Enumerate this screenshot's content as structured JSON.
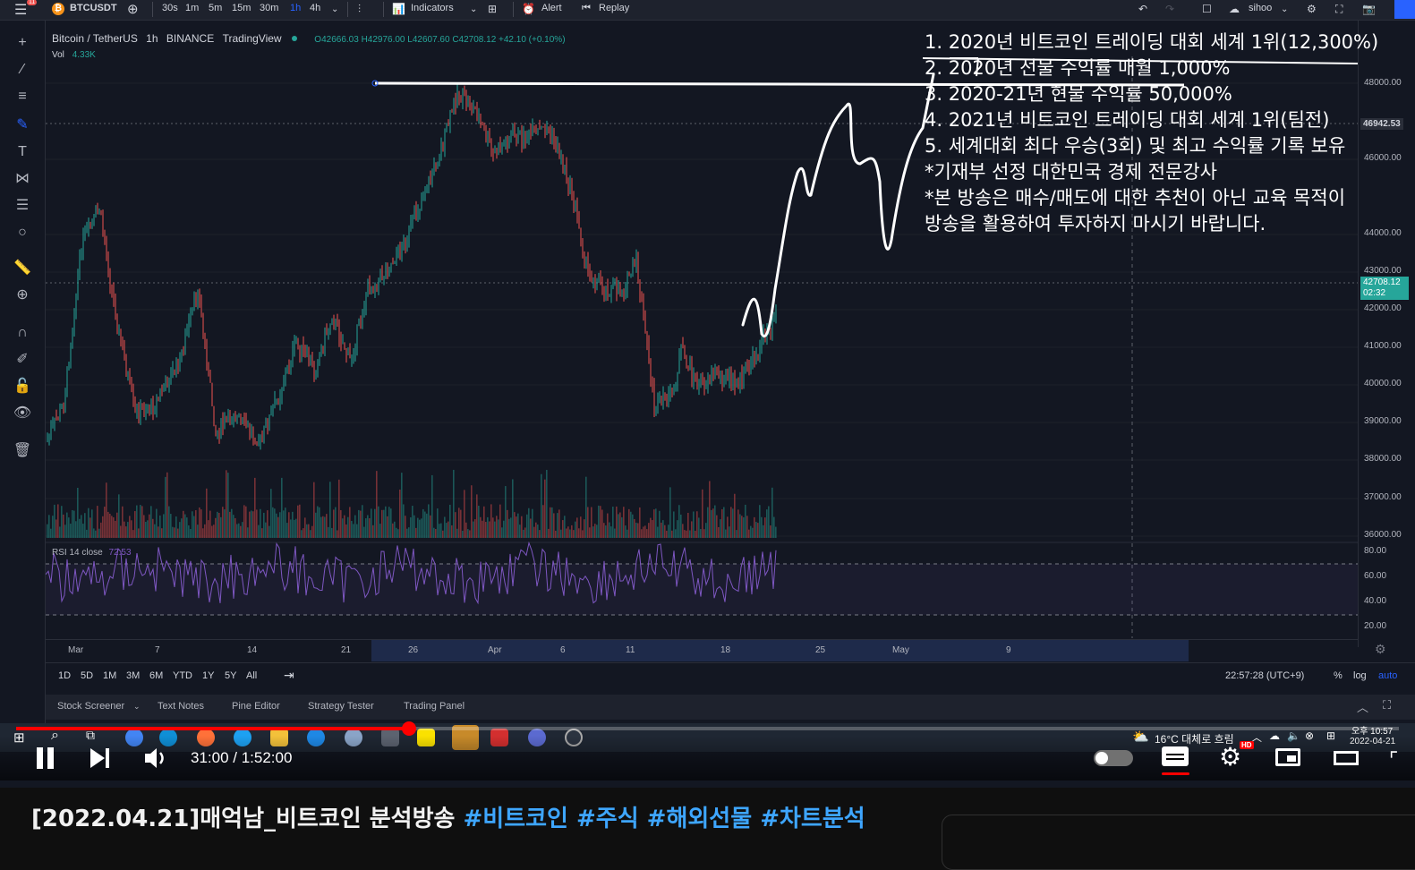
{
  "toolbar": {
    "symbol": "BTCUSDT",
    "timeframes": [
      "30s",
      "1m",
      "5m",
      "15m",
      "30m",
      "1h",
      "4h"
    ],
    "active_timeframe": "1h",
    "indicators_label": "Indicators",
    "alert_label": "Alert",
    "replay_label": "Replay",
    "user": "sihoo",
    "notification_count": "11"
  },
  "legend": {
    "title": "Bitcoin / TetherUS",
    "interval": "1h",
    "exchange": "BINANCE",
    "source": "TradingView",
    "ohlc": "O42666.03  H42976.00  L42607.60  C42708.12  +42.10 (+0.10%)",
    "vol_label": "Vol",
    "vol_value": "4.33K",
    "rsi_label": "RSI 14 close",
    "rsi_value": "72.53"
  },
  "price_scale": {
    "labels": [
      "48000.00",
      "46000.00",
      "44000.00",
      "43000.00",
      "42000.00",
      "41000.00",
      "40000.00",
      "39000.00",
      "38000.00",
      "37000.00",
      "36000.00"
    ],
    "marker": "46942.53",
    "current_price": "42708.12",
    "countdown": "02:32",
    "rsi_labels": [
      "80.00",
      "60.00",
      "40.00",
      "20.00"
    ]
  },
  "time_axis": {
    "labels": [
      "Mar",
      "7",
      "14",
      "21",
      "26",
      "Apr",
      "6",
      "11",
      "18",
      "25",
      "May",
      "9"
    ]
  },
  "range_bar": {
    "ranges": [
      "1D",
      "5D",
      "1M",
      "3M",
      "6M",
      "YTD",
      "1Y",
      "5Y",
      "All"
    ],
    "clock": "22:57:28 (UTC+9)",
    "percent": "%",
    "log": "log",
    "auto": "auto"
  },
  "panel_tabs": [
    "Stock Screener",
    "Text Notes",
    "Pine Editor",
    "Strategy Tester",
    "Trading Panel"
  ],
  "overlay_lines": [
    "1. 2020년 비트코인 트레이딩 대회 세계 1위(12,300%)",
    "2. 2020년 선물 수익률 매월 1,000%",
    "3. 2020-21년 현물 수익률 50,000%",
    "4. 2021년 비트코인 트레이딩 대회 세계 1위(팀전)",
    "5. 세계대회 최다 우승(3회) 및 최고 수익률 기록 보유",
    "*기재부 선정 대한민국 경제 전문강사",
    "*본 방송은 매수/매도에 대한 추천이 아닌 교육 목적이",
    " 방송을 활용하여 투자하지 마시기 바랍니다."
  ],
  "taskbar": {
    "weather": "16°C  대체로 흐림",
    "time": "오후 10:57",
    "date": "2022-04-21"
  },
  "player": {
    "time": "31:00 / 1:52:00",
    "progress": 0.284,
    "hd_badge": "HD"
  },
  "video_title": {
    "main": "[2022.04.21]매억남_비트코인 분석방송 ",
    "tags": "#비트코인 #주식 #해외선물 #차트분석"
  },
  "colors": {
    "up": "#26a69a",
    "down": "#ef5350",
    "accent": "#2962ff",
    "rsi": "#7e57c2",
    "yt_red": "#ff0000",
    "link": "#3ea6ff"
  }
}
